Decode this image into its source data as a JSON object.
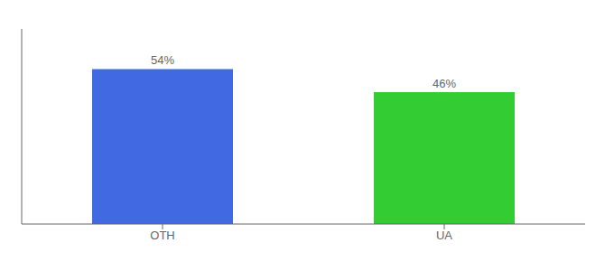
{
  "chart_data": {
    "type": "bar",
    "categories": [
      "OTH",
      "UA"
    ],
    "values": [
      54,
      46
    ],
    "value_labels": [
      "54%",
      "46%"
    ],
    "colors": [
      "#4169e1",
      "#33cc33"
    ],
    "ylim": [
      0,
      68
    ],
    "data_labels": true,
    "tick_labels": "x"
  }
}
